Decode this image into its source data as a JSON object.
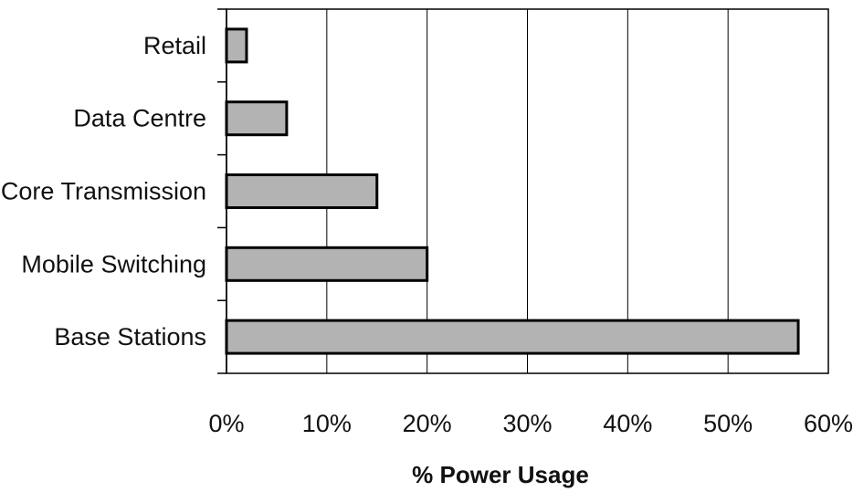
{
  "chart_data": {
    "type": "bar",
    "orientation": "horizontal",
    "categories": [
      "Retail",
      "Data Centre",
      "Core Transmission",
      "Mobile Switching",
      "Base Stations"
    ],
    "values": [
      2,
      6,
      15,
      20,
      57
    ],
    "xlabel": "% Power Usage",
    "ylabel": "",
    "xlim": [
      0,
      60
    ],
    "xticks": [
      0,
      10,
      20,
      30,
      40,
      50,
      60
    ],
    "xtick_labels": [
      "0%",
      "10%",
      "20%",
      "30%",
      "40%",
      "50%",
      "60%"
    ],
    "grid": "vertical",
    "legend": "none",
    "bar_color": "#b3b3b3",
    "bar_edge_color": "#000000"
  }
}
